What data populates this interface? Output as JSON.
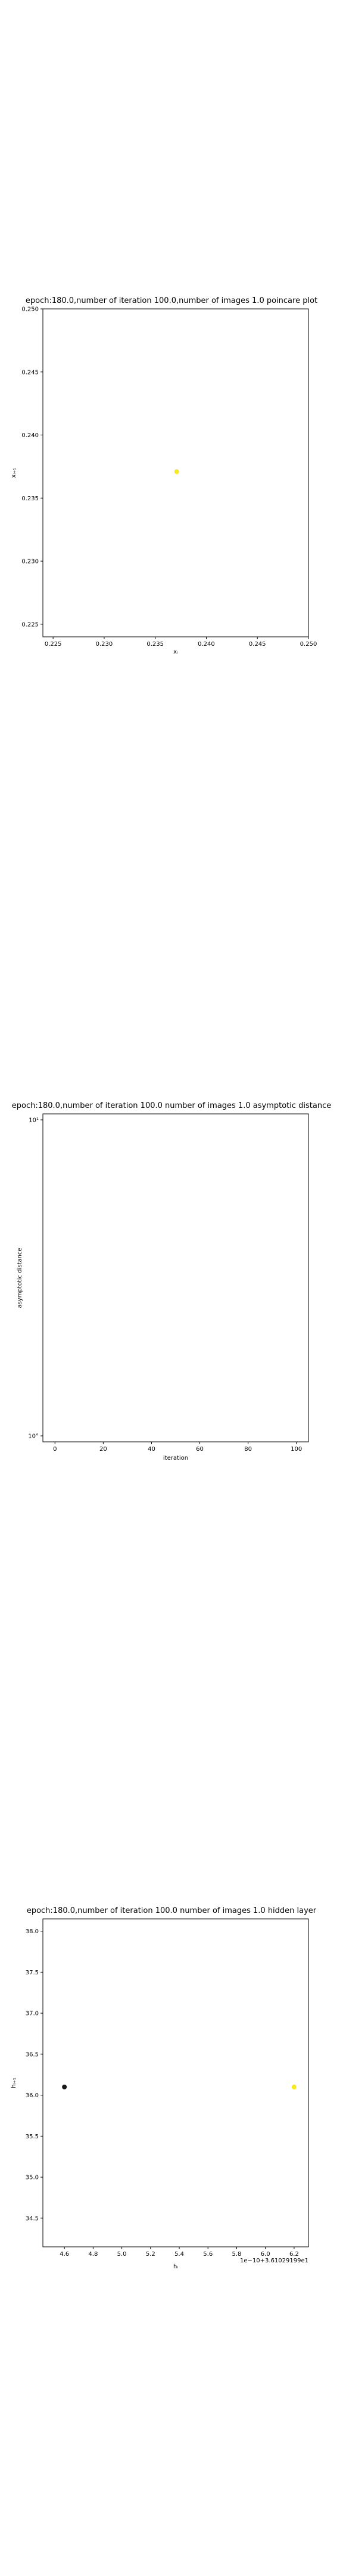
{
  "chart_data": [
    {
      "type": "scatter",
      "title": "epoch:180.0,number of iteration 100.0,number of images 1.0 poincare plot",
      "xlabel": "xᵢ",
      "ylabel": "xᵢ₊₁",
      "xlim": [
        0.224,
        0.25
      ],
      "ylim": [
        0.224,
        0.25
      ],
      "xticks": [
        0.225,
        0.23,
        0.235,
        0.24,
        0.245,
        0.25
      ],
      "xtick_labels": [
        "0.225",
        "0.230",
        "0.235",
        "0.240",
        "0.245",
        "0.250"
      ],
      "yticks": [
        0.225,
        0.23,
        0.235,
        0.24,
        0.245,
        0.25
      ],
      "ytick_labels": [
        "0.225",
        "0.230",
        "0.235",
        "0.240",
        "0.245",
        "0.250"
      ],
      "grid": false,
      "points": [
        {
          "x": 0.2371,
          "y": 0.2371,
          "color": "#f7e81f"
        }
      ]
    },
    {
      "type": "line",
      "title": "epoch:180.0,number of iteration 100.0  number of images 1.0 asymptotic distance",
      "xlabel": "iteration",
      "ylabel": "asymptotic distance",
      "xlim": [
        -5,
        105
      ],
      "yscale": "log",
      "xticks": [
        0,
        20,
        40,
        60,
        80,
        100
      ],
      "xtick_labels": [
        "0",
        "20",
        "40",
        "60",
        "80",
        "100"
      ],
      "yticks": [
        "top",
        "bottom"
      ],
      "ytick_labels": [
        "10¹",
        "10°"
      ],
      "grid": false,
      "series": []
    },
    {
      "type": "scatter",
      "title": "epoch:180.0,number of iteration 100.0  number of images 1.0 hidden layer",
      "xlabel": "hᵢ",
      "ylabel": "hᵢ₊₁",
      "xlim": [
        4.45,
        6.3
      ],
      "ylim": [
        34.15,
        38.15
      ],
      "xticks": [
        4.6,
        4.8,
        5.0,
        5.2,
        5.4,
        5.6,
        5.8,
        6.0,
        6.2
      ],
      "xtick_labels": [
        "4.6",
        "4.8",
        "5.0",
        "5.2",
        "5.4",
        "5.6",
        "5.8",
        "6.0",
        "6.2"
      ],
      "yticks": [
        34.5,
        35.0,
        35.5,
        36.0,
        36.5,
        37.0,
        37.5,
        38.0
      ],
      "ytick_labels": [
        "34.5",
        "35.0",
        "35.5",
        "36.0",
        "36.5",
        "37.0",
        "37.5",
        "38.0"
      ],
      "offset_text": "1e−10+3.61029199e1",
      "grid": false,
      "points": [
        {
          "x": 4.6,
          "y": 36.1,
          "color": "#1a1a1a"
        },
        {
          "x": 6.2,
          "y": 36.1,
          "color": "#f7e81f"
        }
      ]
    }
  ]
}
